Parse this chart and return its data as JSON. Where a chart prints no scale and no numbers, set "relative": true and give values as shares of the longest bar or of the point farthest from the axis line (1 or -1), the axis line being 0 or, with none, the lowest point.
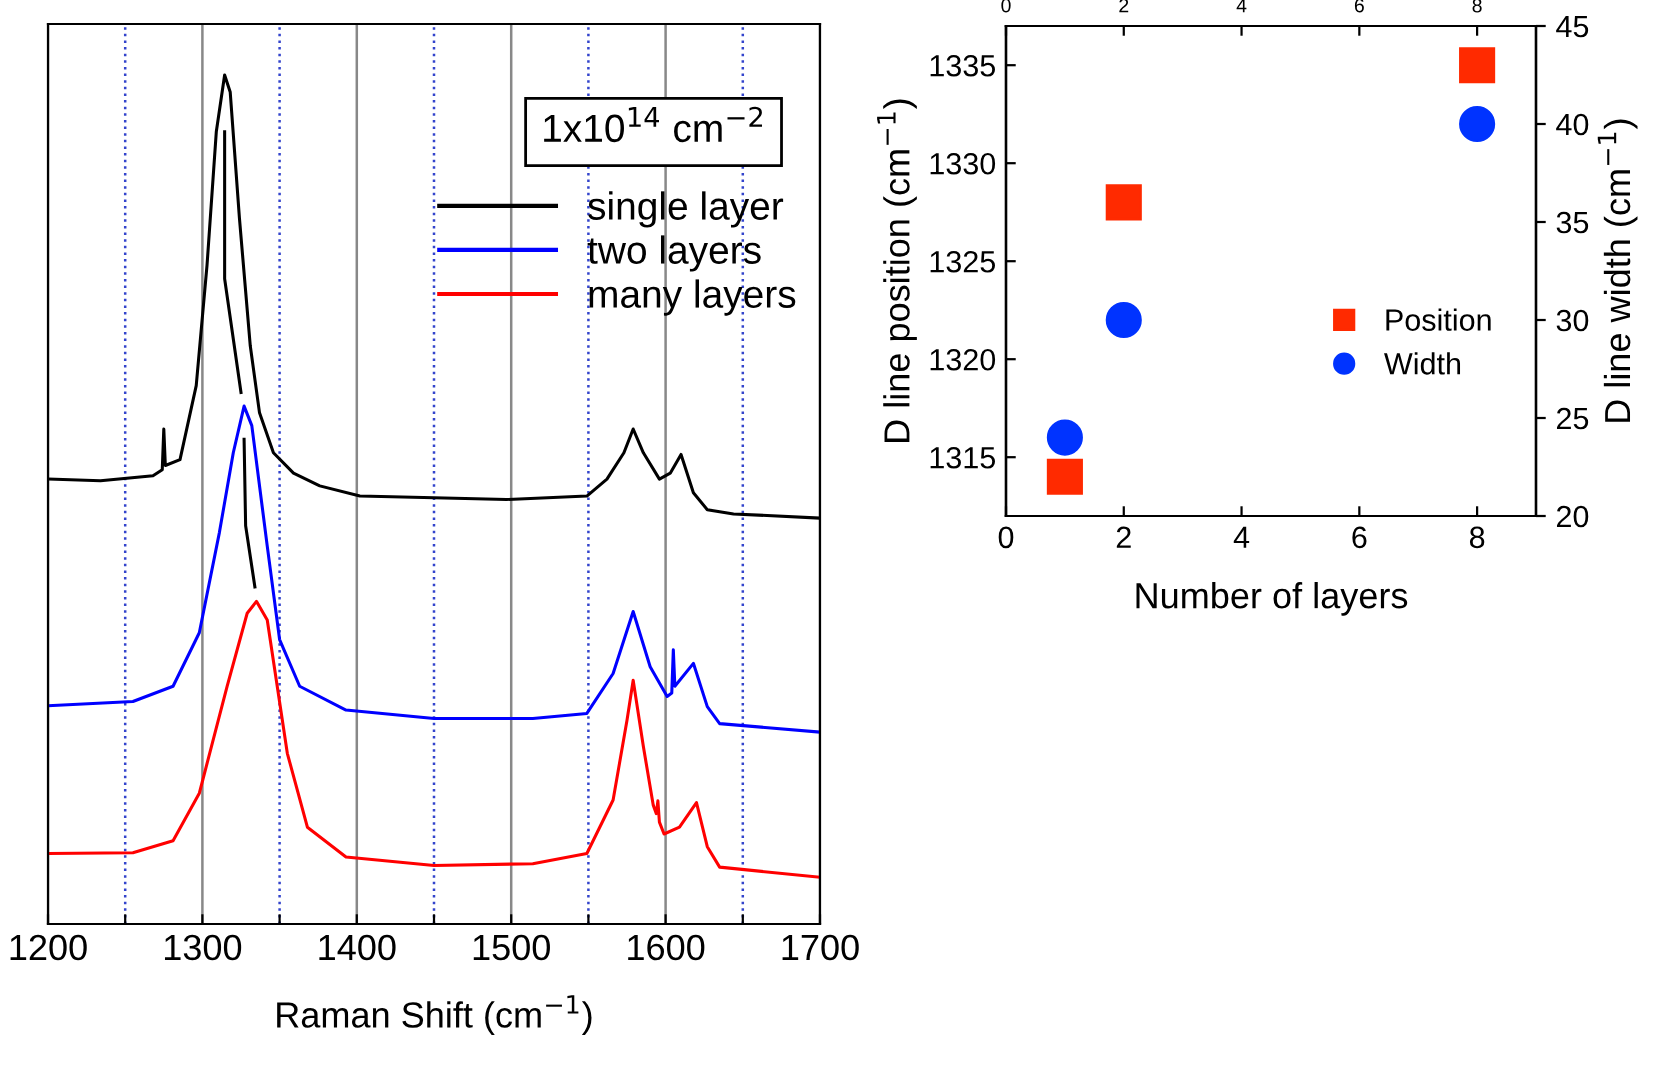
{
  "chart_data": [
    {
      "type": "line",
      "relative": true,
      "xlabel": "Raman Shift (cm$^{−1}$)",
      "xlim": [
        1200,
        1700
      ],
      "xticks": [
        1200,
        {
          "value": 1250,
          "label": null
        },
        1300,
        {
          "value": 1350,
          "label": null
        },
        1400,
        {
          "value": 1450,
          "label": null
        },
        1500,
        {
          "value": 1550,
          "label": null
        },
        1600,
        {
          "value": 1650,
          "label": null
        },
        1700
      ],
      "grid": "x",
      "legend": "top right",
      "tick_labels": "x",
      "annotations": [
        "1x10$^{14}$ cm$^{−2}$"
      ],
      "series": [
        {
          "name": "single layer",
          "color": "#000000",
          "x": [
            1200,
            1234,
            1268,
            1274,
            1275,
            1276,
            1285.5,
            1296,
            1303,
            1309,
            1314.4,
            1318,
            1324,
            1331,
            1337,
            1346,
            1359,
            1376,
            1402,
            1450,
            1497,
            1549,
            1562,
            1573,
            1579,
            1585.6,
            1596,
            1603,
            1610,
            1618,
            1627,
            1644,
            1700
          ],
          "values": [
            0.524,
            0.522,
            0.528,
            0.535,
            0.583,
            0.54,
            0.547,
            0.634,
            0.776,
            0.933,
            1.0,
            0.98,
            0.831,
            0.681,
            0.602,
            0.555,
            0.531,
            0.516,
            0.504,
            0.502,
            0.5,
            0.504,
            0.524,
            0.555,
            0.583,
            0.555,
            0.524,
            0.531,
            0.553,
            0.508,
            0.488,
            0.483,
            0.478
          ]
        },
        {
          "name": "two layers",
          "color": "#0000ff",
          "x": [
            1200,
            1255,
            1281,
            1298,
            1311,
            1320,
            1327,
            1332,
            1342,
            1350,
            1363,
            1393,
            1450,
            1514,
            1549,
            1566,
            1579,
            1590,
            1601,
            1604,
            1605,
            1606,
            1618,
            1627,
            1635,
            1700
          ],
          "values": [
            0.257,
            0.262,
            0.28,
            0.343,
            0.461,
            0.555,
            0.61,
            0.587,
            0.445,
            0.335,
            0.28,
            0.252,
            0.242,
            0.242,
            0.248,
            0.295,
            0.368,
            0.303,
            0.268,
            0.272,
            0.323,
            0.28,
            0.307,
            0.256,
            0.236,
            0.226
          ]
        },
        {
          "name": "many layers",
          "color": "#ff0000",
          "x": [
            1200,
            1255,
            1281,
            1298,
            1316,
            1329,
            1335,
            1342,
            1355,
            1368,
            1393,
            1450,
            1514,
            1549,
            1566,
            1575,
            1579,
            1585.6,
            1592,
            1594,
            1595,
            1596,
            1599,
            1609,
            1620,
            1627,
            1635,
            1700
          ],
          "values": [
            0.083,
            0.084,
            0.098,
            0.154,
            0.28,
            0.366,
            0.38,
            0.358,
            0.201,
            0.114,
            0.079,
            0.069,
            0.071,
            0.083,
            0.146,
            0.24,
            0.287,
            0.209,
            0.14,
            0.13,
            0.145,
            0.12,
            0.106,
            0.114,
            0.143,
            0.091,
            0.067,
            0.055
          ]
        },
        {
          "color": "#000000",
          "x": [
            1314.4,
            1314.4,
            1325,
            1326,
            1327,
            1328,
            1334
          ],
          "values": [
            0.933,
            0.76,
            0.626,
            null,
            0.571,
            0.469,
            0.397
          ]
        }
      ]
    },
    {
      "type": "scatter",
      "xlabel": "Number of layers",
      "ylabel": "D line position (cm$^{−1}$)",
      "y2label": "D line width (cm$^{−1}$)",
      "xlim": [
        0,
        9
      ],
      "xticks": [
        0,
        2,
        4,
        6,
        8
      ],
      "x2lim": [
        0,
        9
      ],
      "x2ticks": [
        0,
        2,
        4,
        6,
        8
      ],
      "ylim": [
        1312,
        1337
      ],
      "yticks": [
        1315,
        1320,
        1325,
        1330,
        1335
      ],
      "y2lim": [
        20,
        45
      ],
      "y2ticks": [
        20,
        25,
        30,
        35,
        40,
        45
      ],
      "legend": "bottom right",
      "grid": false,
      "series": [
        {
          "name": "Position",
          "color": "#ff2a00",
          "marker": "square",
          "x": [
            1,
            2,
            8
          ],
          "values": [
            1314,
            1328,
            1335
          ]
        },
        {
          "name": "Width",
          "color": "#0033ff",
          "marker": "circle",
          "axis": "y2",
          "x": [
            1,
            2,
            8
          ],
          "values": [
            24,
            30,
            40
          ]
        }
      ]
    }
  ]
}
